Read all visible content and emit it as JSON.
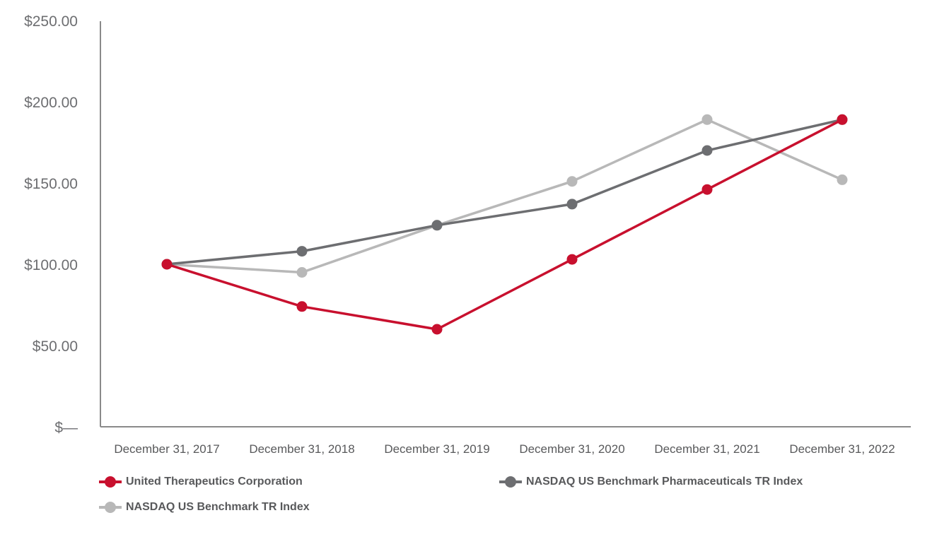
{
  "chart_data": {
    "type": "line",
    "title": "",
    "xlabel": "",
    "ylabel": "",
    "categories": [
      "December 31, 2017",
      "December 31, 2018",
      "December 31, 2019",
      "December 31, 2020",
      "December 31, 2021",
      "December 31, 2022"
    ],
    "ylim": [
      0,
      250
    ],
    "yticks": [
      0,
      50,
      100,
      150,
      200,
      250
    ],
    "ytick_labels": [
      "$—",
      "$50.00",
      "$100.00",
      "$150.00",
      "$200.00",
      "$250.00"
    ],
    "grid": false,
    "legend_position": "bottom",
    "series": [
      {
        "name": "United Therapeutics Corporation",
        "color": "#c8102e",
        "values": [
          100,
          74,
          60,
          103,
          146,
          189
        ]
      },
      {
        "name": "NASDAQ US Benchmark Pharmaceuticals TR Index",
        "color": "#6d6e71",
        "values": [
          100,
          108,
          124,
          137,
          170,
          189
        ]
      },
      {
        "name": "NASDAQ US Benchmark TR Index",
        "color": "#b8b8b8",
        "values": [
          100,
          95,
          124,
          151,
          189,
          152
        ]
      }
    ]
  }
}
